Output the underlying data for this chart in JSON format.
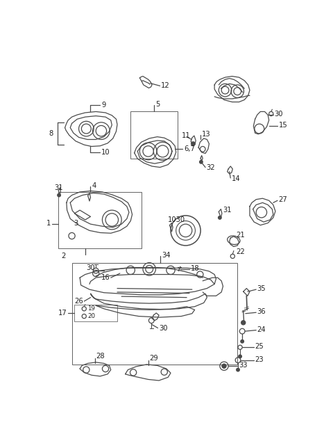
{
  "bg_color": "#ffffff",
  "line_color": "#4a4a4a",
  "label_color": "#222222",
  "lw": 0.9,
  "label_fs": 7.2,
  "figsize": [
    4.8,
    6.44
  ],
  "dpi": 100,
  "xlim": [
    0,
    480
  ],
  "ylim": [
    0,
    644
  ]
}
